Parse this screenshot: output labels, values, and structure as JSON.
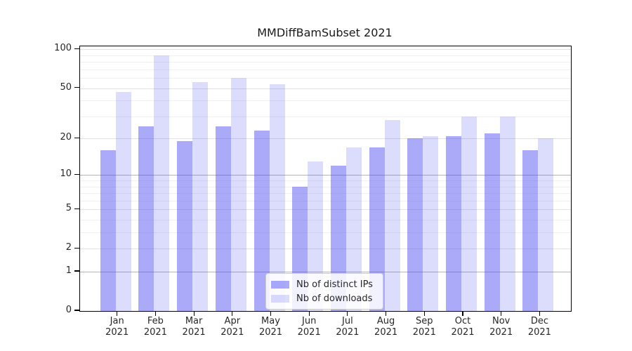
{
  "title": "MMDiffBamSubset 2021",
  "chart_data": {
    "type": "bar",
    "title": "MMDiffBamSubset 2021",
    "categories": [
      "Jan 2021",
      "Feb 2021",
      "Mar 2021",
      "Apr 2021",
      "May 2021",
      "Jun 2021",
      "Jul 2021",
      "Aug 2021",
      "Sep 2021",
      "Oct 2021",
      "Nov 2021",
      "Dec 2021"
    ],
    "series": [
      {
        "name": "Nb of distinct IPs",
        "color": "rgba(70,70,242,0.46)",
        "values": [
          16,
          25,
          19,
          25,
          23,
          8,
          12,
          17,
          20,
          21,
          22,
          16
        ]
      },
      {
        "name": "Nb of downloads",
        "color": "rgba(70,70,242,0.19)",
        "values": [
          47,
          90,
          56,
          60,
          54,
          13,
          17,
          28,
          21,
          30,
          30,
          20
        ]
      }
    ],
    "xlabel": "",
    "ylabel": "",
    "yscale": "log1p",
    "ylim": [
      0,
      105
    ],
    "yticks": [
      0,
      1,
      2,
      5,
      10,
      20,
      50,
      100
    ],
    "yticks_minor": [
      3,
      4,
      6,
      7,
      8,
      9,
      30,
      40,
      60,
      70,
      80,
      90
    ],
    "emphasized_gridlines": [
      1,
      10
    ],
    "grid": true,
    "legend_position": "lower center"
  }
}
